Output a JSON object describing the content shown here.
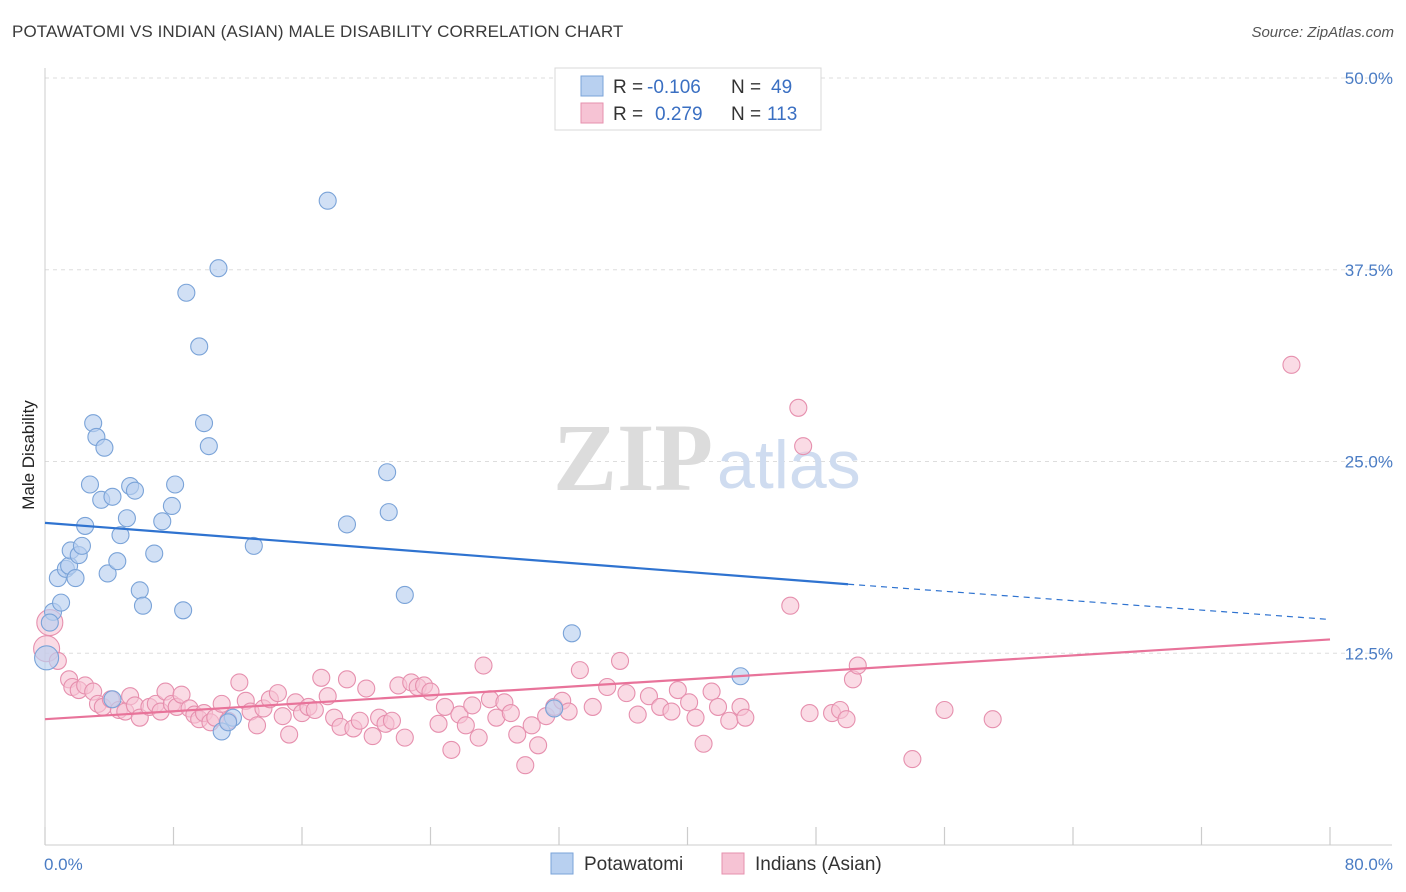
{
  "title": "POTAWATOMI VS INDIAN (ASIAN) MALE DISABILITY CORRELATION CHART",
  "source": "Source: ZipAtlas.com",
  "watermark": {
    "zip": "ZIP",
    "atlas": "atlas"
  },
  "legend": {
    "r_label": "R =",
    "n_label": "N =",
    "rows": [
      {
        "r": "-0.106",
        "n": "49"
      },
      {
        "r": "0.279",
        "n": "113"
      }
    ]
  },
  "colors": {
    "blue_fill": "#b8d0f0",
    "blue_stroke": "#7aa3d8",
    "blue_line": "#2f73d0",
    "pink_fill": "#f6c3d4",
    "pink_stroke": "#e690ae",
    "pink_line": "#e8739a",
    "tick_text": "#4a7cc4",
    "grid": "#dddddd"
  },
  "chart_data": {
    "type": "scatter",
    "title": "POTAWATOMI VS INDIAN (ASIAN) MALE DISABILITY CORRELATION CHART",
    "xlabel": "",
    "ylabel": "Male Disability",
    "xlim": [
      0,
      80
    ],
    "ylim": [
      0,
      50
    ],
    "x_tick_labels": [
      "0.0%",
      "80.0%"
    ],
    "y_ticks": [
      12.5,
      25.0,
      37.5,
      50.0
    ],
    "y_tick_labels": [
      "12.5%",
      "25.0%",
      "37.5%",
      "50.0%"
    ],
    "grid": "horizontal dashed",
    "legend_position": "top-center",
    "series": [
      {
        "name": "Potawatomi",
        "r": -0.106,
        "n": 49,
        "trend": {
          "x0": 0,
          "y0": 21.0,
          "x1": 50,
          "y1": 17.0,
          "dashed_to_x": 80,
          "dashed_to_y": 14.7
        },
        "points": [
          [
            0.1,
            12.2
          ],
          [
            0.5,
            15.2
          ],
          [
            0.8,
            17.4
          ],
          [
            1.0,
            15.8
          ],
          [
            1.3,
            18.0
          ],
          [
            1.5,
            18.2
          ],
          [
            1.6,
            19.2
          ],
          [
            1.9,
            17.4
          ],
          [
            2.1,
            18.9
          ],
          [
            2.3,
            19.5
          ],
          [
            2.5,
            20.8
          ],
          [
            2.8,
            23.5
          ],
          [
            3.0,
            27.5
          ],
          [
            3.2,
            26.6
          ],
          [
            3.5,
            22.5
          ],
          [
            3.7,
            25.9
          ],
          [
            3.9,
            17.7
          ],
          [
            4.2,
            22.7
          ],
          [
            4.5,
            18.5
          ],
          [
            4.7,
            20.2
          ],
          [
            5.1,
            21.3
          ],
          [
            5.3,
            23.4
          ],
          [
            5.6,
            23.1
          ],
          [
            5.9,
            16.6
          ],
          [
            6.1,
            15.6
          ],
          [
            6.8,
            19.0
          ],
          [
            7.3,
            21.1
          ],
          [
            7.9,
            22.1
          ],
          [
            8.1,
            23.5
          ],
          [
            8.6,
            15.3
          ],
          [
            8.8,
            36.0
          ],
          [
            9.6,
            32.5
          ],
          [
            9.9,
            27.5
          ],
          [
            10.2,
            26.0
          ],
          [
            10.8,
            37.6
          ],
          [
            11.0,
            7.4
          ],
          [
            11.7,
            8.3
          ],
          [
            13.0,
            19.5
          ],
          [
            17.6,
            42.0
          ],
          [
            18.8,
            20.9
          ],
          [
            21.3,
            24.3
          ],
          [
            21.4,
            21.7
          ],
          [
            22.4,
            16.3
          ],
          [
            31.7,
            8.9
          ],
          [
            32.8,
            13.8
          ],
          [
            43.3,
            11.0
          ],
          [
            4.2,
            9.5
          ],
          [
            0.3,
            14.5
          ],
          [
            11.4,
            8.0
          ]
        ]
      },
      {
        "name": "Indians (Asian)",
        "r": 0.279,
        "n": 113,
        "trend": {
          "x0": 0,
          "y0": 8.2,
          "x1": 80,
          "y1": 13.4
        },
        "points": [
          [
            0.1,
            12.8
          ],
          [
            0.3,
            14.5
          ],
          [
            0.8,
            12.0
          ],
          [
            1.5,
            10.8
          ],
          [
            1.7,
            10.3
          ],
          [
            2.1,
            10.1
          ],
          [
            2.5,
            10.4
          ],
          [
            3.0,
            10.0
          ],
          [
            3.3,
            9.2
          ],
          [
            3.6,
            9.0
          ],
          [
            4.1,
            9.5
          ],
          [
            4.6,
            8.8
          ],
          [
            5.0,
            8.7
          ],
          [
            5.3,
            9.7
          ],
          [
            5.6,
            9.1
          ],
          [
            5.9,
            8.3
          ],
          [
            6.5,
            9.0
          ],
          [
            6.9,
            9.2
          ],
          [
            7.2,
            8.7
          ],
          [
            7.5,
            10.0
          ],
          [
            7.9,
            9.2
          ],
          [
            8.2,
            9.0
          ],
          [
            8.5,
            9.8
          ],
          [
            9.0,
            8.9
          ],
          [
            9.3,
            8.5
          ],
          [
            9.6,
            8.2
          ],
          [
            9.9,
            8.6
          ],
          [
            10.3,
            8.0
          ],
          [
            10.6,
            8.3
          ],
          [
            11.0,
            9.2
          ],
          [
            11.4,
            8.1
          ],
          [
            12.1,
            10.6
          ],
          [
            12.5,
            9.4
          ],
          [
            12.8,
            8.7
          ],
          [
            13.2,
            7.8
          ],
          [
            13.6,
            8.9
          ],
          [
            14.0,
            9.5
          ],
          [
            14.5,
            9.9
          ],
          [
            14.8,
            8.4
          ],
          [
            15.2,
            7.2
          ],
          [
            15.6,
            9.3
          ],
          [
            16.0,
            8.6
          ],
          [
            16.4,
            9.0
          ],
          [
            16.8,
            8.8
          ],
          [
            17.2,
            10.9
          ],
          [
            17.6,
            9.7
          ],
          [
            18.0,
            8.3
          ],
          [
            18.4,
            7.7
          ],
          [
            18.8,
            10.8
          ],
          [
            19.2,
            7.6
          ],
          [
            19.6,
            8.1
          ],
          [
            20.0,
            10.2
          ],
          [
            20.4,
            7.1
          ],
          [
            20.8,
            8.3
          ],
          [
            21.2,
            7.9
          ],
          [
            21.6,
            8.1
          ],
          [
            22.0,
            10.4
          ],
          [
            22.4,
            7.0
          ],
          [
            22.8,
            10.6
          ],
          [
            23.2,
            10.3
          ],
          [
            23.6,
            10.4
          ],
          [
            24.0,
            10.0
          ],
          [
            24.5,
            7.9
          ],
          [
            24.9,
            9.0
          ],
          [
            25.3,
            6.2
          ],
          [
            25.8,
            8.5
          ],
          [
            26.2,
            7.8
          ],
          [
            26.6,
            9.1
          ],
          [
            27.0,
            7.0
          ],
          [
            27.3,
            11.7
          ],
          [
            27.7,
            9.5
          ],
          [
            28.1,
            8.3
          ],
          [
            28.6,
            9.3
          ],
          [
            29.0,
            8.6
          ],
          [
            29.4,
            7.2
          ],
          [
            29.9,
            5.2
          ],
          [
            30.3,
            7.8
          ],
          [
            30.7,
            6.5
          ],
          [
            31.2,
            8.4
          ],
          [
            31.7,
            9.0
          ],
          [
            32.2,
            9.4
          ],
          [
            32.6,
            8.7
          ],
          [
            33.3,
            11.4
          ],
          [
            34.1,
            9.0
          ],
          [
            35.0,
            10.3
          ],
          [
            35.8,
            12.0
          ],
          [
            36.2,
            9.9
          ],
          [
            36.9,
            8.5
          ],
          [
            37.6,
            9.7
          ],
          [
            38.3,
            9.0
          ],
          [
            39.0,
            8.7
          ],
          [
            39.4,
            10.1
          ],
          [
            40.1,
            9.3
          ],
          [
            40.5,
            8.3
          ],
          [
            41.0,
            6.6
          ],
          [
            41.5,
            10.0
          ],
          [
            41.9,
            9.0
          ],
          [
            42.6,
            8.1
          ],
          [
            43.3,
            9.0
          ],
          [
            43.6,
            8.3
          ],
          [
            46.4,
            15.6
          ],
          [
            46.9,
            28.5
          ],
          [
            47.2,
            26.0
          ],
          [
            47.6,
            8.6
          ],
          [
            49.0,
            8.6
          ],
          [
            49.5,
            8.8
          ],
          [
            49.9,
            8.2
          ],
          [
            50.3,
            10.8
          ],
          [
            50.6,
            11.7
          ],
          [
            54.0,
            5.6
          ],
          [
            56.0,
            8.8
          ],
          [
            59.0,
            8.2
          ],
          [
            77.6,
            31.3
          ]
        ]
      }
    ]
  }
}
